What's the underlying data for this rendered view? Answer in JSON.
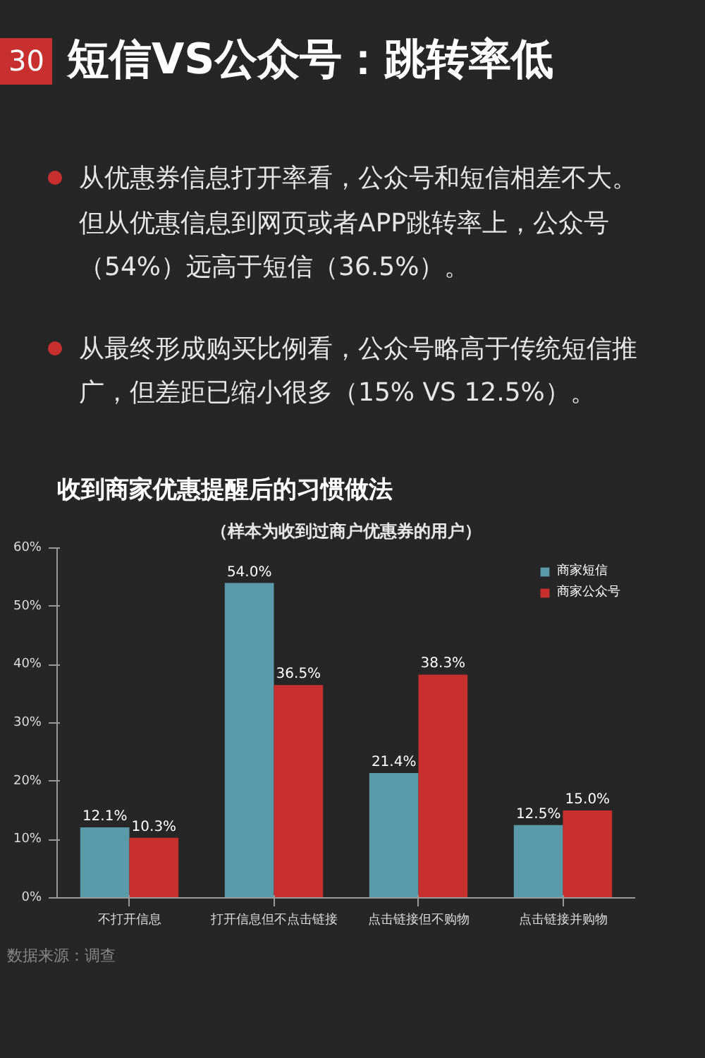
{
  "chart_data": {
    "type": "bar",
    "title": "收到商家优惠提醒后的习惯做法",
    "subtitle": "（样本为收到过商户优惠券的用户）",
    "annotations": [
      "30",
      "短信VS公众号：跳转率低",
      "从优惠券信息打开率看，公众号和短信相差不大。但从优惠信息到网页或者APP跳转率上，公众号（54%）远高于短信（36.5%）。",
      "从最终形成购买比例看，公众号略高于传统短信推广，但差距已缩小很多（15% VS 12.5%）。",
      "数据来源：调查"
    ],
    "categories": [
      "不打开信息",
      "打开信息但不点击链接",
      "点击链接但不购物",
      "点击链接并购物"
    ],
    "series": [
      {
        "name": "商家短信",
        "color": "#5b9aa8",
        "values": [
          12.1,
          54.0,
          21.4,
          12.5
        ],
        "value_labels": [
          "12.1%",
          "54.0%",
          "21.4%",
          "12.5%"
        ]
      },
      {
        "name": "商家公众号",
        "color": "#c8302f",
        "values": [
          10.3,
          36.5,
          38.3,
          15.0
        ],
        "value_labels": [
          "10.3%",
          "36.5%",
          "38.3%",
          "15.0%"
        ]
      }
    ],
    "ylim": [
      0,
      60
    ],
    "yticks": [
      {
        "value": 0,
        "label": "0%"
      },
      {
        "value": 10,
        "label": "10%"
      },
      {
        "value": 20,
        "label": "20%"
      },
      {
        "value": 30,
        "label": "30%"
      },
      {
        "value": 40,
        "label": "40%"
      },
      {
        "value": 50,
        "label": "50%"
      },
      {
        "value": 60,
        "label": "60%"
      }
    ],
    "grid": false,
    "legend": "top right"
  }
}
